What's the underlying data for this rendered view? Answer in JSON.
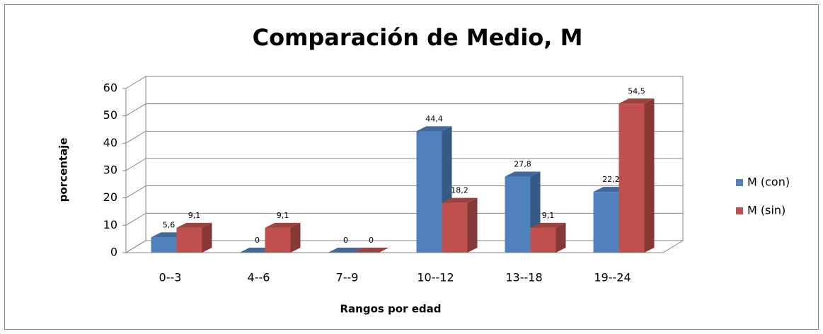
{
  "chart_data": {
    "type": "bar3d",
    "title": "Comparación de Medio, M",
    "x_label": "Rangos por edad",
    "y_label": "porcentaje",
    "categories": [
      "0--3",
      "4--6",
      "7--9",
      "10--12",
      "13--18",
      "19--24"
    ],
    "series": [
      {
        "name": "M (con)",
        "color": "#4f81bd",
        "values": [
          5.6,
          0,
          0,
          44.4,
          27.8,
          22.2
        ],
        "value_labels": [
          "5,6",
          "0",
          "0",
          "44,4",
          "27,8",
          "22,2"
        ]
      },
      {
        "name": "M (sin)",
        "color": "#c0504d",
        "values": [
          9.1,
          9.1,
          0,
          18.2,
          9.1,
          54.5
        ],
        "value_labels": [
          "9,1",
          "9,1",
          "0",
          "18,2",
          "9,1",
          "54,5"
        ]
      }
    ],
    "ylim": [
      0,
      60
    ],
    "yticks": [
      0,
      10,
      20,
      30,
      40,
      50,
      60
    ],
    "grid": true,
    "legend": "right"
  }
}
